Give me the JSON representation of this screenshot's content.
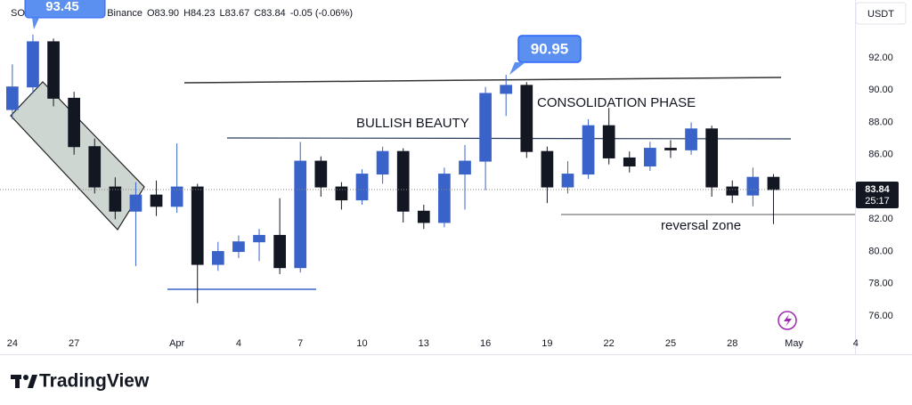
{
  "chart_data": {
    "type": "candlestick",
    "symbol": "SOL / TetherUS · 4h · Binance",
    "ohlc_text": [
      "O83.90",
      "H84.23",
      "L83.67",
      "C83.84",
      "-0.05 (-0.06%)"
    ],
    "currency": "USDT",
    "countdown": "25:17",
    "annotations": [
      "BULLISH BEAUTY",
      "CONSOLIDATION PHASE",
      "reversal zone"
    ],
    "up_color": "#3a63c9",
    "down_color": "#131722",
    "x": [
      0,
      1,
      2,
      3,
      4,
      5,
      6,
      7,
      8,
      9,
      10,
      11,
      12,
      13,
      14,
      15,
      16,
      17,
      18,
      19,
      20,
      21,
      22,
      23,
      24,
      25,
      26,
      27,
      28,
      29,
      30,
      31,
      32,
      33,
      34,
      35,
      36,
      37
    ],
    "open": [
      88.8,
      90.2,
      93.0,
      89.5,
      86.5,
      84.0,
      82.5,
      83.5,
      82.8,
      84.0,
      79.2,
      80.0,
      80.6,
      81.0,
      79.0,
      85.6,
      84.0,
      83.2,
      84.8,
      86.2,
      82.5,
      81.8,
      84.8,
      85.6,
      89.8,
      90.3,
      86.2,
      84.0,
      84.8,
      87.8,
      85.8,
      85.3,
      86.4,
      86.3,
      87.6,
      84.0,
      83.5,
      84.6
    ],
    "high": [
      91.6,
      93.45,
      93.2,
      89.9,
      87.0,
      84.6,
      84.3,
      84.4,
      86.7,
      84.2,
      80.6,
      81.0,
      81.4,
      83.3,
      86.8,
      85.9,
      84.3,
      85.1,
      86.5,
      86.4,
      82.9,
      85.2,
      86.6,
      90.2,
      90.95,
      90.5,
      86.5,
      85.6,
      88.2,
      88.9,
      86.2,
      86.8,
      86.9,
      88.0,
      87.8,
      84.4,
      85.2,
      84.8
    ],
    "low": [
      88.2,
      89.8,
      89.0,
      86.0,
      83.6,
      82.0,
      79.1,
      82.2,
      82.4,
      76.8,
      78.8,
      79.6,
      79.4,
      78.6,
      78.7,
      83.4,
      82.6,
      82.9,
      84.2,
      81.8,
      81.4,
      81.5,
      82.6,
      83.8,
      88.4,
      85.8,
      83.0,
      83.6,
      84.5,
      85.4,
      84.9,
      85.0,
      85.8,
      86.0,
      83.4,
      83.0,
      82.8,
      81.7
    ],
    "close": [
      90.2,
      93.0,
      89.5,
      86.5,
      84.0,
      82.5,
      83.5,
      82.8,
      84.0,
      79.2,
      80.0,
      80.6,
      81.0,
      79.0,
      85.6,
      84.0,
      83.2,
      84.8,
      86.2,
      82.5,
      81.8,
      84.8,
      85.6,
      89.8,
      90.3,
      86.2,
      84.0,
      84.8,
      87.8,
      85.8,
      85.3,
      86.4,
      86.3,
      87.6,
      84.0,
      83.5,
      84.6,
      83.84
    ],
    "xlim": [
      -0.6,
      41.05
    ],
    "xticks": [
      {
        "value": 0,
        "label": "24"
      },
      {
        "value": 3,
        "label": "27"
      },
      {
        "value": 8,
        "label": "Apr"
      },
      {
        "value": 11,
        "label": "4"
      },
      {
        "value": 14,
        "label": "7"
      },
      {
        "value": 17,
        "label": "10"
      },
      {
        "value": 20,
        "label": "13"
      },
      {
        "value": 23,
        "label": "16"
      },
      {
        "value": 26,
        "label": "19"
      },
      {
        "value": 29,
        "label": "22"
      },
      {
        "value": 32,
        "label": "25"
      },
      {
        "value": 35,
        "label": "28"
      },
      {
        "value": 38,
        "label": "May"
      },
      {
        "value": 41,
        "label": "4"
      }
    ],
    "ylim": [
      74.9,
      95.59
    ],
    "yticks": [
      {
        "value": 76,
        "label": "76.00"
      },
      {
        "value": 78,
        "label": "78.00"
      },
      {
        "value": 80,
        "label": "80.00"
      },
      {
        "value": 82,
        "label": "82.00"
      },
      {
        "value": 84,
        "label": "84.00"
      },
      {
        "value": 86,
        "label": "86.00"
      },
      {
        "value": 88,
        "label": "88.00"
      },
      {
        "value": 90,
        "label": "90.00"
      },
      {
        "value": 92,
        "label": "92.00"
      }
    ]
  },
  "brand": "TradingView"
}
